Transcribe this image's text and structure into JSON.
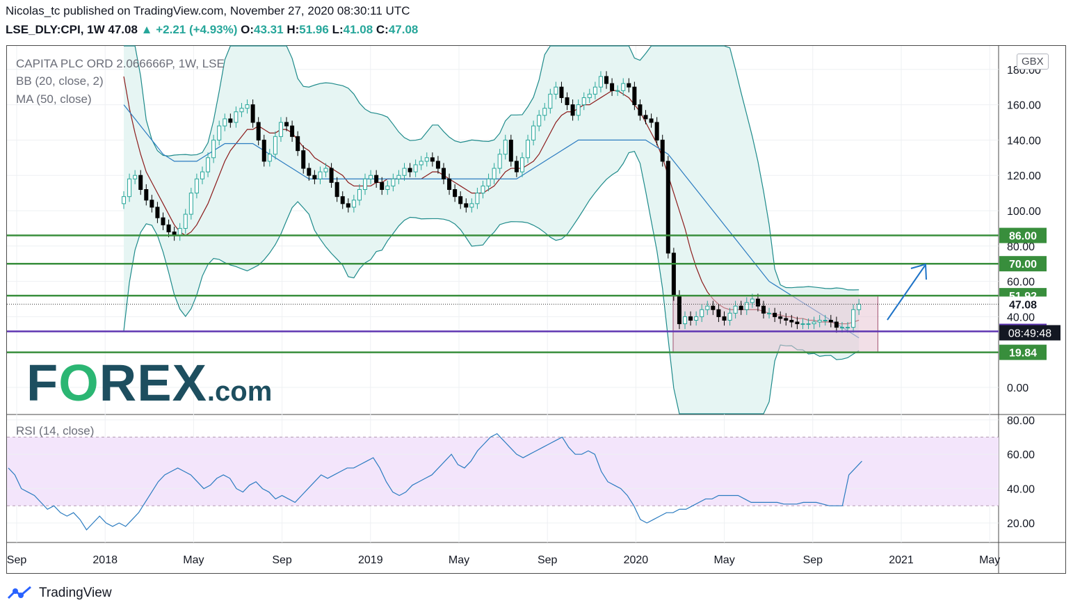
{
  "header": {
    "publisher_line": "Nicolas_tc published on TradingView.com, November 27, 2020 08:30:11 UTC",
    "symbol": "LSE_DLY:CPI, 1W",
    "last": "47.08",
    "change": "+2.21 (+4.93%)",
    "o_label": "O:",
    "o_value": "43.31",
    "h_label": "H:",
    "h_value": "51.96",
    "l_label": "L:",
    "l_value": "41.08",
    "c_label": "C:",
    "c_value": "47.08"
  },
  "legend": {
    "title": "CAPITA PLC ORD 2.066666P, 1W, LSE",
    "bb": "BB (20, close, 2)",
    "ma": "MA (50, close)",
    "rsi": "RSI (14, close)"
  },
  "currency": "GBX",
  "logo": {
    "text_prefix": "F",
    "text_o": "O",
    "text_suffix": "REX",
    "text_domain": ".com"
  },
  "footer": {
    "brand": "TradingView"
  },
  "colors": {
    "up": "#26a69a",
    "down": "#000000",
    "bb_band": "#1d8a8a",
    "bb_fill": "#e6f5f3",
    "ma": "#8b1a1a",
    "ma50": "#2a7bc0",
    "support": "#388e3c",
    "pivot": "#5e35b1",
    "rsi": "#2a7bc0",
    "rsi_band": "#f3e5fb",
    "box": "#e8c4d4",
    "arrow": "#1e73c7"
  },
  "chart_data": {
    "type": "candlestick",
    "x_tick_labels": [
      "Sep",
      "2018",
      "May",
      "Sep",
      "2019",
      "May",
      "Sep",
      "2020",
      "May",
      "Sep",
      "2021",
      "May"
    ],
    "x_ticks": [
      "2017-09",
      "2018-01",
      "2018-05",
      "2018-09",
      "2019-01",
      "2019-05",
      "2019-09",
      "2020-01",
      "2020-05",
      "2020-09",
      "2021-01",
      "2021-05"
    ],
    "y_tick_labels": [
      "0.00",
      "20.00",
      "40.00",
      "60.00",
      "80.00",
      "100.00",
      "120.00",
      "140.00",
      "160.00",
      "180.00"
    ],
    "price_y_ticks": [
      0,
      20,
      40,
      60,
      80,
      100,
      120,
      140,
      160,
      180
    ],
    "rsi_y_ticks": [
      20,
      40,
      60,
      80
    ],
    "rsi_y_tick_labels": [
      "20.00",
      "40.00",
      "60.00",
      "80.00"
    ],
    "rsi_band": [
      30,
      70
    ],
    "horizontal_levels": [
      {
        "value": 86.0,
        "label": "86.00",
        "color": "#388e3c"
      },
      {
        "value": 70.0,
        "label": "70.00",
        "color": "#388e3c"
      },
      {
        "value": 51.92,
        "label": "51.92",
        "color": "#388e3c"
      },
      {
        "value": 31.7,
        "label": "31.70",
        "color": "#5e35b1"
      },
      {
        "value": 19.84,
        "label": "19.84",
        "color": "#388e3c"
      }
    ],
    "last_price": {
      "value": 47.08,
      "label": "47.08"
    },
    "countdown_label": "08:49:48",
    "weekly_close": [
      108,
      118,
      120,
      112,
      106,
      102,
      96,
      92,
      88,
      86,
      90,
      98,
      110,
      118,
      122,
      130,
      140,
      148,
      152,
      150,
      156,
      158,
      160,
      150,
      140,
      128,
      132,
      142,
      150,
      148,
      142,
      134,
      124,
      120,
      118,
      122,
      124,
      116,
      108,
      104,
      102,
      106,
      112,
      118,
      120,
      116,
      112,
      114,
      118,
      120,
      124,
      122,
      126,
      128,
      130,
      128,
      124,
      118,
      112,
      108,
      104,
      102,
      104,
      110,
      114,
      118,
      124,
      132,
      140,
      128,
      122,
      130,
      140,
      148,
      154,
      158,
      166,
      170,
      164,
      160,
      154,
      160,
      164,
      166,
      170,
      176,
      172,
      168,
      168,
      172,
      170,
      160,
      154,
      152,
      150,
      140,
      128,
      76,
      52,
      36,
      40,
      38,
      40,
      44,
      46,
      44,
      40,
      38,
      42,
      46,
      44,
      48,
      50,
      46,
      42,
      42,
      40,
      39,
      38,
      37,
      36,
      36,
      36,
      37,
      38,
      38,
      37,
      34,
      34,
      34,
      44,
      47.08
    ],
    "ma20_close": [
      176,
      158,
      144,
      132,
      122,
      116,
      110,
      104,
      98,
      92,
      88,
      86,
      88,
      92,
      98,
      104,
      112,
      120,
      128,
      134,
      138,
      142,
      146,
      146,
      148,
      146,
      144,
      144,
      146,
      146,
      144,
      140,
      136,
      134,
      130,
      128,
      126,
      124,
      122,
      120,
      116,
      114,
      114,
      114,
      114,
      116,
      116,
      118,
      118,
      118,
      118,
      118,
      118,
      118,
      120,
      122,
      122,
      120,
      118,
      116,
      114,
      112,
      110,
      110,
      110,
      112,
      114,
      118,
      122,
      124,
      124,
      124,
      126,
      128,
      132,
      138,
      144,
      150,
      154,
      156,
      156,
      158,
      160,
      160,
      162,
      164,
      166,
      168,
      168,
      166,
      164,
      160,
      156,
      150,
      144,
      138,
      130,
      120,
      110,
      100,
      90,
      78,
      68,
      60,
      54,
      50,
      47,
      45,
      44,
      44,
      44,
      44,
      44,
      44,
      43,
      42,
      41,
      41,
      40,
      40,
      39,
      39,
      38,
      38,
      37,
      37,
      37,
      36,
      36,
      36,
      37,
      38
    ],
    "ma50_close": [
      160,
      156,
      152,
      148,
      144,
      140,
      136,
      132,
      130,
      128,
      128,
      128,
      128,
      128,
      130,
      132,
      134,
      136,
      138,
      138,
      138,
      138,
      138,
      138,
      136,
      134,
      132,
      130,
      128,
      126,
      124,
      122,
      120,
      118,
      118,
      118,
      118,
      118,
      118,
      118,
      118,
      118,
      118,
      118,
      118,
      118,
      118,
      118,
      118,
      118,
      118,
      118,
      118,
      118,
      118,
      118,
      118,
      118,
      118,
      118,
      118,
      118,
      118,
      118,
      118,
      118,
      118,
      118,
      118,
      118,
      118,
      120,
      122,
      124,
      126,
      128,
      130,
      132,
      134,
      136,
      138,
      140,
      140,
      140,
      140,
      140,
      140,
      140,
      140,
      140,
      140,
      140,
      140,
      140,
      138,
      136,
      134,
      132,
      128,
      124,
      120,
      116,
      112,
      108,
      104,
      100,
      96,
      92,
      88,
      84,
      80,
      76,
      72,
      68,
      64,
      60,
      58,
      56,
      54,
      52,
      50,
      48,
      46,
      44,
      42,
      40,
      38,
      36,
      34,
      32,
      30,
      28
    ],
    "rsi_values": [
      52,
      48,
      40,
      38,
      36,
      32,
      28,
      30,
      26,
      24,
      26,
      22,
      16,
      20,
      24,
      20,
      18,
      20,
      18,
      22,
      26,
      32,
      38,
      44,
      48,
      50,
      52,
      50,
      48,
      44,
      40,
      42,
      46,
      48,
      46,
      40,
      38,
      42,
      44,
      40,
      38,
      34,
      36,
      34,
      32,
      36,
      40,
      44,
      48,
      46,
      48,
      50,
      52,
      52,
      54,
      56,
      58,
      52,
      44,
      38,
      36,
      38,
      42,
      44,
      46,
      48,
      52,
      56,
      60,
      54,
      52,
      56,
      62,
      66,
      70,
      72,
      68,
      64,
      60,
      58,
      60,
      62,
      64,
      66,
      68,
      70,
      64,
      60,
      60,
      62,
      60,
      50,
      44,
      42,
      40,
      36,
      30,
      22,
      20,
      22,
      24,
      26,
      26,
      28,
      28,
      30,
      32,
      34,
      34,
      36,
      36,
      36,
      36,
      34,
      32,
      32,
      32,
      32,
      32,
      31,
      31,
      31,
      32,
      32,
      32,
      31,
      30,
      30,
      30,
      48,
      52,
      56
    ],
    "range_box": {
      "x_start": "2020-03",
      "x_end": "2020-11",
      "y_low": 19.84,
      "y_high": 51.92
    }
  }
}
